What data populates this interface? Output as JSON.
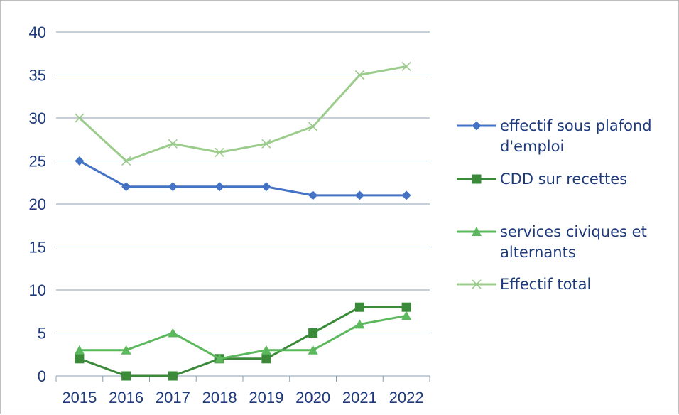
{
  "chart_data": {
    "type": "line",
    "title": "",
    "xlabel": "",
    "ylabel": "",
    "x": [
      "2015",
      "2016",
      "2017",
      "2018",
      "2019",
      "2020",
      "2021",
      "2022"
    ],
    "ylim": [
      0,
      40
    ],
    "yticks": [
      0,
      5,
      10,
      15,
      20,
      25,
      30,
      35,
      40
    ],
    "grid": true,
    "legend_position": "right",
    "series": [
      {
        "name": "effectif sous plafond d'emploi",
        "name_lines": [
          "effectif sous plafond",
          "d'emploi"
        ],
        "values": [
          25,
          22,
          22,
          22,
          22,
          21,
          21,
          21
        ],
        "color": "#4472c4",
        "marker": "diamond"
      },
      {
        "name": "CDD sur recettes",
        "name_lines": [
          "CDD sur recettes"
        ],
        "values": [
          2,
          0,
          0,
          2,
          2,
          5,
          8,
          8
        ],
        "color": "#3a8a3a",
        "marker": "square"
      },
      {
        "name": "services civiques et alternants",
        "name_lines": [
          "services civiques et",
          "alternants"
        ],
        "values": [
          3,
          3,
          5,
          2,
          3,
          3,
          6,
          7
        ],
        "color": "#5cb85c",
        "marker": "triangle"
      },
      {
        "name": "Effectif total",
        "name_lines": [
          "Effectif total"
        ],
        "values": [
          30,
          25,
          27,
          26,
          27,
          29,
          35,
          36
        ],
        "color": "#9ccc8c",
        "marker": "x"
      }
    ]
  }
}
